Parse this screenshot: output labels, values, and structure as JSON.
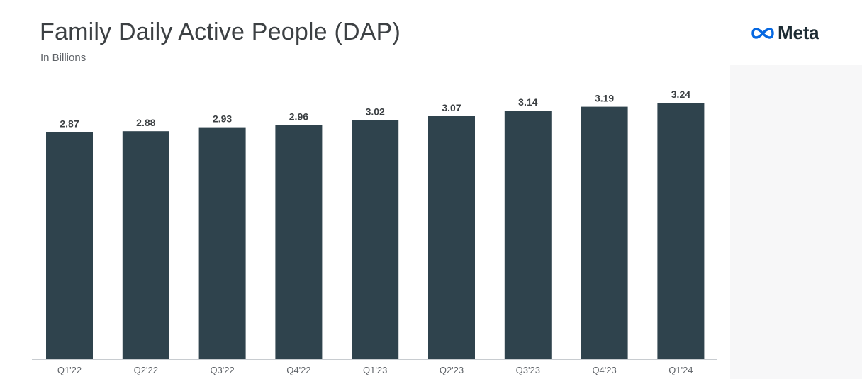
{
  "header": {
    "title": "Family Daily Active People (DAP)",
    "subtitle": "In Billions",
    "logo_text": "Meta",
    "logo_icon": "meta-infinity-icon"
  },
  "colors": {
    "bar": "#2f434d",
    "logo_blue": "#0668e1",
    "axis": "#c8ccd0"
  },
  "chart_data": {
    "type": "bar",
    "title": "Family Daily Active People (DAP)",
    "subtitle": "In Billions",
    "categories": [
      "Q1'22",
      "Q2'22",
      "Q3'22",
      "Q4'22",
      "Q1'23",
      "Q2'23",
      "Q3'23",
      "Q4'23",
      "Q1'24"
    ],
    "values": [
      2.87,
      2.88,
      2.93,
      2.96,
      3.02,
      3.07,
      3.14,
      3.19,
      3.24
    ],
    "value_labels": [
      "2.87",
      "2.88",
      "2.93",
      "2.96",
      "3.02",
      "3.07",
      "3.14",
      "3.19",
      "3.24"
    ],
    "ylim": [
      0,
      3.24
    ],
    "grid": false,
    "legend": "none"
  }
}
